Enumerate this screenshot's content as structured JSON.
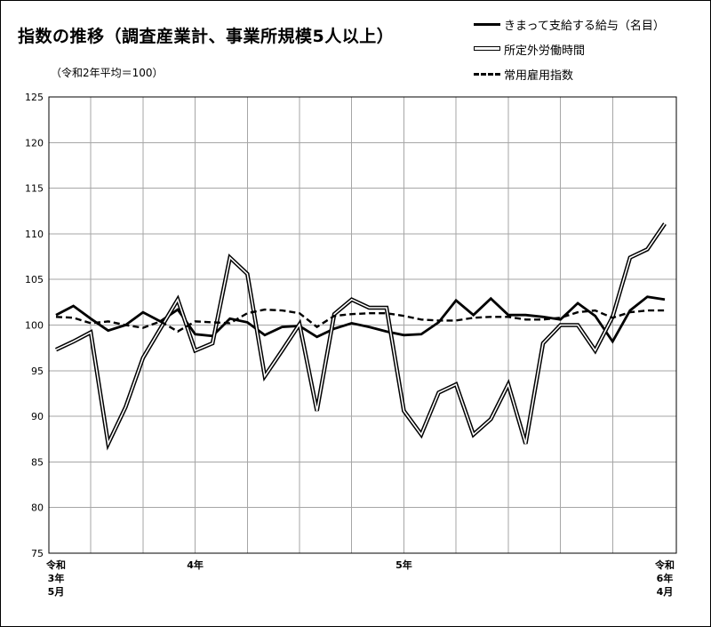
{
  "title": "指数の推移（調査産業計、事業所規模5人以上）",
  "subtitle": "（令和2年平均＝100）",
  "chart_data": {
    "type": "line",
    "title": "指数の推移（調査産業計、事業所規模5人以上）",
    "subtitle": "（令和2年平均＝100）",
    "ylim": [
      75,
      125
    ],
    "yticks": [
      75,
      80,
      85,
      90,
      95,
      100,
      105,
      110,
      115,
      120,
      125
    ],
    "x_range": [
      0,
      35
    ],
    "grid": true,
    "legend_position": "top-right",
    "x_tick_labels": [
      {
        "index": 0,
        "lines": [
          "令和",
          "3年",
          "5月"
        ]
      },
      {
        "index": 8,
        "lines": [
          "4年"
        ]
      },
      {
        "index": 20,
        "lines": [
          "5年"
        ]
      },
      {
        "index": 35,
        "lines": [
          "令和",
          "6年",
          "4月"
        ]
      }
    ],
    "series": [
      {
        "name": "きまって支給する給与（名目）",
        "style": "solid",
        "values": [
          101.1,
          102.1,
          100.7,
          99.4,
          100.0,
          101.4,
          100.4,
          101.7,
          99.0,
          98.8,
          100.7,
          100.3,
          98.9,
          99.8,
          99.9,
          98.7,
          99.6,
          100.2,
          99.8,
          99.3,
          98.9,
          99.0,
          100.3,
          102.7,
          101.1,
          102.9,
          101.1,
          101.1,
          100.9,
          100.6,
          102.4,
          101.0,
          98.2,
          101.6,
          103.1,
          102.8
        ]
      },
      {
        "name": "所定外労働時間",
        "style": "double",
        "values": [
          97.3,
          98.2,
          99.2,
          87.0,
          91.0,
          96.4,
          99.6,
          102.8,
          97.2,
          98.0,
          107.4,
          105.6,
          94.4,
          97.2,
          100.1,
          90.6,
          101.2,
          102.8,
          101.9,
          101.9,
          90.6,
          88.0,
          92.6,
          93.5,
          88.0,
          89.7,
          93.5,
          87.0,
          98.0,
          100.0,
          100.0,
          97.2,
          100.9,
          107.4,
          108.3,
          111.1
        ]
      },
      {
        "name": "常用雇用指数",
        "style": "dashed",
        "values": [
          100.9,
          100.8,
          100.2,
          100.4,
          100.0,
          99.7,
          100.4,
          99.3,
          100.4,
          100.3,
          100.2,
          101.3,
          101.7,
          101.6,
          101.3,
          99.8,
          101.0,
          101.2,
          101.3,
          101.3,
          101.0,
          100.6,
          100.5,
          100.5,
          100.8,
          100.9,
          100.9,
          100.6,
          100.6,
          100.8,
          101.4,
          101.6,
          100.8,
          101.4,
          101.6,
          101.6
        ]
      }
    ]
  }
}
